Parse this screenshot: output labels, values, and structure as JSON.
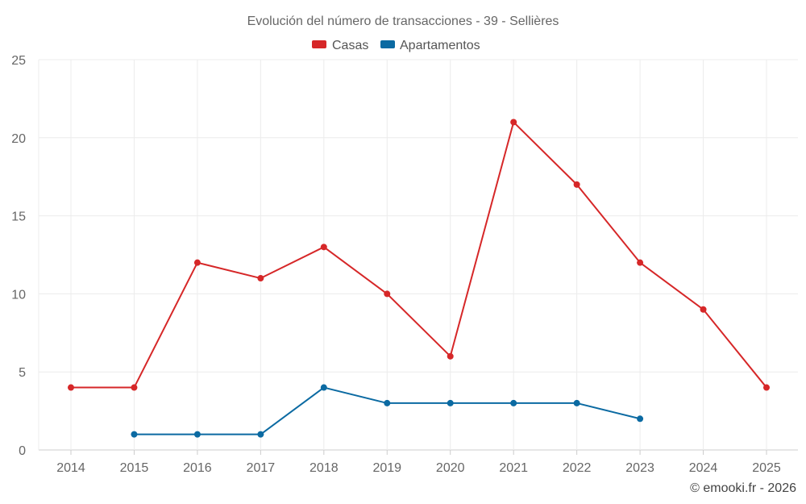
{
  "chart_data": {
    "type": "line",
    "title": "Evolución del número de transacciones - 39 - Sellières",
    "categories": [
      "2014",
      "2015",
      "2016",
      "2017",
      "2018",
      "2019",
      "2020",
      "2021",
      "2022",
      "2023",
      "2024",
      "2025"
    ],
    "ylim": [
      0,
      25
    ],
    "yticks": [
      0,
      5,
      10,
      15,
      20,
      25
    ],
    "grid": true,
    "legend_position": "top-center",
    "series": [
      {
        "name": "Casas",
        "color": "#d62728",
        "values": [
          4,
          4,
          12,
          11,
          13,
          10,
          6,
          21,
          17,
          12,
          9,
          4
        ]
      },
      {
        "name": "Apartamentos",
        "color": "#0b6aa2",
        "values": [
          null,
          1,
          1,
          1,
          4,
          3,
          3,
          3,
          3,
          2,
          null,
          null
        ]
      }
    ],
    "credit": "© emooki.fr - 2026"
  }
}
